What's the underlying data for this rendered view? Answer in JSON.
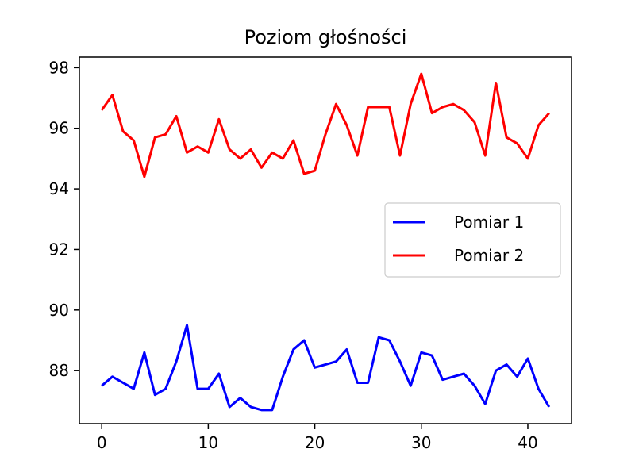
{
  "chart_data": {
    "type": "line",
    "title": "Poziom głośności",
    "xlabel": "",
    "ylabel": "",
    "xlim": [
      -2.1,
      44.1
    ],
    "ylim": [
      86.25,
      98.35
    ],
    "xticks": [
      0,
      10,
      20,
      30,
      40
    ],
    "yticks": [
      88,
      90,
      92,
      94,
      96,
      98
    ],
    "grid": false,
    "legend_position": "center-right",
    "x": [
      0,
      1,
      2,
      3,
      4,
      5,
      6,
      7,
      8,
      9,
      10,
      11,
      12,
      13,
      14,
      15,
      16,
      17,
      18,
      19,
      20,
      21,
      22,
      23,
      24,
      25,
      26,
      27,
      28,
      29,
      30,
      31,
      32,
      33,
      34,
      35,
      36,
      37,
      38,
      39,
      40,
      41,
      42
    ],
    "series": [
      {
        "name": "Pomiar 1",
        "color": "#0000ff",
        "values": [
          87.5,
          87.8,
          87.6,
          87.4,
          88.6,
          87.2,
          87.4,
          88.3,
          89.5,
          87.4,
          87.4,
          87.9,
          86.8,
          87.1,
          86.8,
          86.7,
          86.7,
          87.8,
          88.7,
          89.0,
          88.1,
          88.2,
          88.3,
          88.7,
          87.6,
          87.6,
          89.1,
          89.0,
          88.3,
          87.5,
          88.6,
          88.5,
          87.7,
          87.8,
          87.9,
          87.5,
          86.9,
          88.0,
          88.2,
          87.8,
          88.4,
          87.4,
          86.8
        ]
      },
      {
        "name": "Pomiar 2",
        "color": "#ff0000",
        "values": [
          96.6,
          97.1,
          95.9,
          95.6,
          94.4,
          95.7,
          95.8,
          96.4,
          95.2,
          95.4,
          95.2,
          96.3,
          95.3,
          95.0,
          95.3,
          94.7,
          95.2,
          95.0,
          95.6,
          94.5,
          94.6,
          95.8,
          96.8,
          96.1,
          95.1,
          96.7,
          96.7,
          96.7,
          95.1,
          96.8,
          97.8,
          96.5,
          96.7,
          96.8,
          96.6,
          96.2,
          95.1,
          97.5,
          95.7,
          95.5,
          95.0,
          96.1,
          96.5
        ]
      }
    ]
  }
}
